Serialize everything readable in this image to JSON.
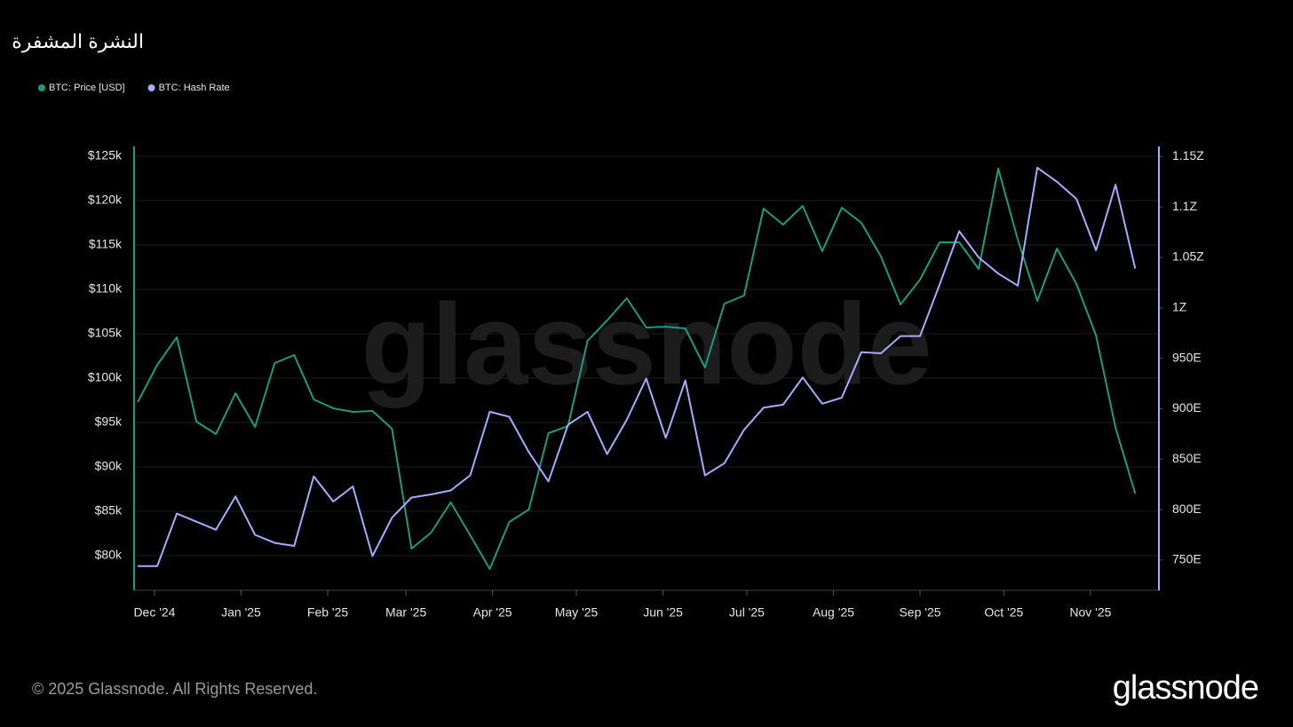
{
  "header": {
    "title": "النشرة المشفرة"
  },
  "chart_data": {
    "type": "line",
    "x": [
      -6,
      1,
      8,
      15,
      22,
      29,
      36,
      43,
      50,
      57,
      64,
      71,
      78,
      85,
      92,
      99,
      106,
      113,
      120,
      127,
      134,
      141,
      148,
      155,
      162,
      169,
      176,
      183,
      190,
      197,
      204,
      211,
      218,
      225,
      232,
      239,
      246,
      253,
      260,
      267,
      274,
      281,
      288,
      295,
      302,
      309,
      316,
      323,
      330,
      337,
      344,
      351
    ],
    "xlim": [
      -7.3,
      359.5
    ],
    "xticks": [
      {
        "value": 0,
        "label": "Dec '24"
      },
      {
        "value": 31,
        "label": "Jan '25"
      },
      {
        "value": 62,
        "label": "Feb '25"
      },
      {
        "value": 90,
        "label": "Mar '25"
      },
      {
        "value": 121,
        "label": "Apr '25"
      },
      {
        "value": 151,
        "label": "May '25"
      },
      {
        "value": 182,
        "label": "Jun '25"
      },
      {
        "value": 212,
        "label": "Jul '25"
      },
      {
        "value": 243,
        "label": "Aug '25"
      },
      {
        "value": 274,
        "label": "Sep '25"
      },
      {
        "value": 304,
        "label": "Oct '25"
      },
      {
        "value": 335,
        "label": "Nov '25"
      }
    ],
    "ylim": [
      76100,
      126100
    ],
    "yticks": [
      {
        "value": 80000,
        "label": "$80k"
      },
      {
        "value": 85000,
        "label": "$85k"
      },
      {
        "value": 90000,
        "label": "$90k"
      },
      {
        "value": 95000,
        "label": "$95k"
      },
      {
        "value": 100000,
        "label": "$100k"
      },
      {
        "value": 105000,
        "label": "$105k"
      },
      {
        "value": 110000,
        "label": "$110k"
      },
      {
        "value": 115000,
        "label": "$115k"
      },
      {
        "value": 120000,
        "label": "$120k"
      },
      {
        "value": 125000,
        "label": "$125k"
      }
    ],
    "y2lim": [
      720,
      1160
    ],
    "y2ticks": [
      {
        "value": 750,
        "label": "750E"
      },
      {
        "value": 800,
        "label": "800E"
      },
      {
        "value": 850,
        "label": "850E"
      },
      {
        "value": 900,
        "label": "900E"
      },
      {
        "value": 950,
        "label": "950E"
      },
      {
        "value": 1000,
        "label": "1Z"
      },
      {
        "value": 1050,
        "label": "1.05Z"
      },
      {
        "value": 1100,
        "label": "1.1Z"
      },
      {
        "value": 1150,
        "label": "1.15Z"
      }
    ],
    "series": [
      {
        "name": "BTC: Price [USD]",
        "color": "#1b9c7d",
        "values": [
          97300,
          101500,
          104600,
          95100,
          93700,
          98300,
          94500,
          101700,
          102600,
          97600,
          96600,
          96200,
          96300,
          94300,
          80800,
          82600,
          86000,
          82300,
          78500,
          83800,
          85200,
          93800,
          94600,
          104200,
          106500,
          109000,
          105700,
          105800,
          105600,
          101200,
          108400,
          109300,
          119100,
          117300,
          119400,
          114300,
          119200,
          117500,
          113700,
          108300,
          111100,
          115300,
          115300,
          112300,
          123600,
          115600,
          108700,
          114600,
          110600,
          104800,
          94400,
          87000
        ]
      },
      {
        "name": "BTC: Hash Rate",
        "color": "#a9aaff",
        "axis": "y2",
        "values": [
          744,
          744,
          796,
          788,
          780,
          813,
          775,
          767,
          764,
          833,
          808,
          823,
          754,
          792,
          812,
          815,
          819,
          834,
          897,
          892,
          857,
          828,
          884,
          897,
          855,
          889,
          930,
          871,
          928,
          834,
          846,
          879,
          901,
          904,
          931,
          905,
          911,
          956,
          955,
          972,
          972,
          1023,
          1076,
          1050,
          1034,
          1022,
          1139,
          1125,
          1108,
          1057,
          1122,
          1039
        ]
      }
    ],
    "grid": true,
    "legend": "top-left",
    "watermark": "glassnode"
  },
  "footer": {
    "copyright": "© 2025 Glassnode. All Rights Reserved.",
    "logo": "glassnode"
  }
}
